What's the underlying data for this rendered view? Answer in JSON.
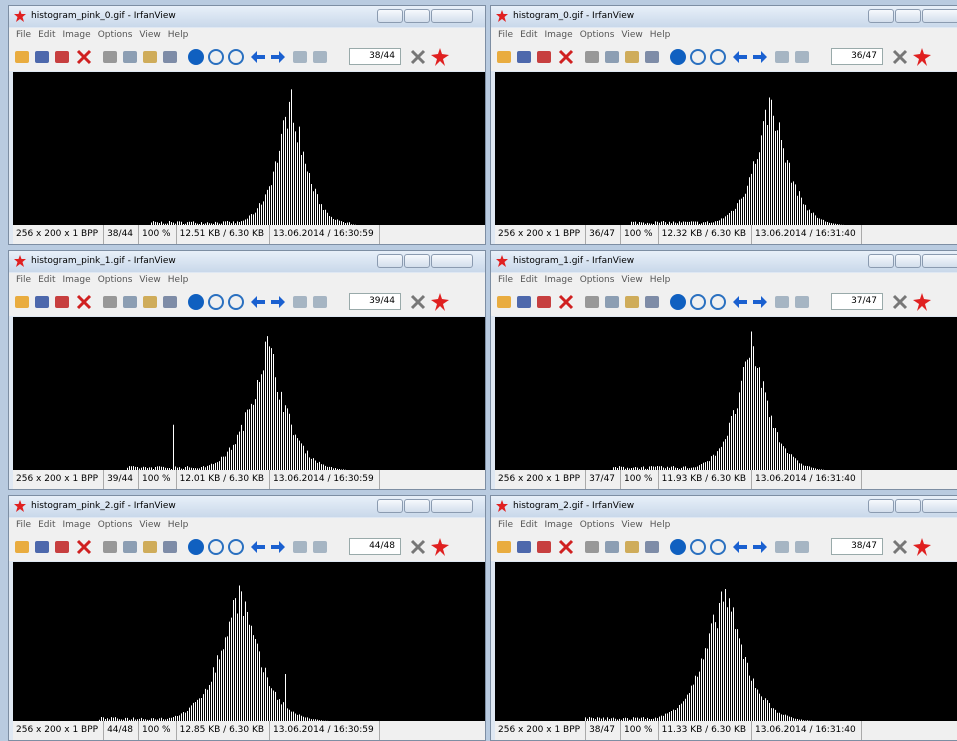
{
  "windows": [
    {
      "title": "histogram_pink_0.gif - IrfanView",
      "menu": [
        "File",
        "Edit",
        "Image",
        "Options",
        "View",
        "Help"
      ],
      "counter": "38/44",
      "status": [
        "256 x 200 x 1 BPP",
        "38/44",
        "100 %",
        "12.51 KB / 6.30 KB",
        "13.06.2014 / 16:30:59"
      ]
    },
    {
      "title": "histogram_0.gif - IrfanView",
      "menu": [
        "File",
        "Edit",
        "Image",
        "Options",
        "View",
        "Help"
      ],
      "counter": "36/47",
      "status": [
        "256 x 200 x 1 BPP",
        "36/47",
        "100 %",
        "12.32 KB / 6.30 KB",
        "13.06.2014 / 16:31:40"
      ]
    },
    {
      "title": "histogram_pink_1.gif - IrfanView",
      "menu": [
        "File",
        "Edit",
        "Image",
        "Options",
        "View",
        "Help"
      ],
      "counter": "39/44",
      "status": [
        "256 x 200 x 1 BPP",
        "39/44",
        "100 %",
        "12.01 KB / 6.30 KB",
        "13.06.2014 / 16:30:59"
      ]
    },
    {
      "title": "histogram_1.gif - IrfanView",
      "menu": [
        "File",
        "Edit",
        "Image",
        "Options",
        "View",
        "Help"
      ],
      "counter": "37/47",
      "status": [
        "256 x 200 x 1 BPP",
        "37/47",
        "100 %",
        "11.93 KB / 6.30 KB",
        "13.06.2014 / 16:31:40"
      ]
    },
    {
      "title": "histogram_pink_2.gif - IrfanView",
      "menu": [
        "File",
        "Edit",
        "Image",
        "Options",
        "View",
        "Help"
      ],
      "counter": "44/48",
      "status": [
        "256 x 200 x 1 BPP",
        "44/48",
        "100 %",
        "12.85 KB / 6.30 KB",
        "13.06.2014 / 16:30:59"
      ]
    },
    {
      "title": "histogram_2.gif - IrfanView",
      "menu": [
        "File",
        "Edit",
        "Image",
        "Options",
        "View",
        "Help"
      ],
      "counter": "38/47",
      "status": [
        "256 x 200 x 1 BPP",
        "38/47",
        "100 %",
        "11.33 KB / 6.30 KB",
        "13.06.2014 / 16:31:40"
      ]
    }
  ]
}
